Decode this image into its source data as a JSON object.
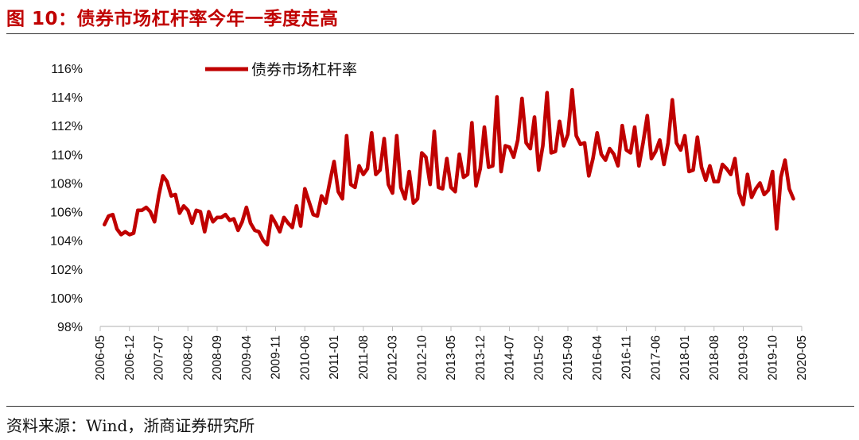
{
  "figure": {
    "title": "图 10：债券市场杠杆率今年一季度走高",
    "source": "资料来源：Wind，浙商证券研究所"
  },
  "colors": {
    "accent": "#c00000",
    "axis": "#bfbfbf",
    "text": "#111111"
  },
  "chart_data": {
    "type": "line",
    "title": "",
    "xlabel": "",
    "ylabel": "",
    "ylim": [
      98,
      116
    ],
    "y_ticks": [
      98,
      100,
      102,
      104,
      106,
      108,
      110,
      112,
      114,
      116
    ],
    "y_tick_labels": [
      "98%",
      "100%",
      "102%",
      "104%",
      "106%",
      "108%",
      "110%",
      "112%",
      "114%",
      "116%"
    ],
    "x_tick_labels": [
      "2006-05",
      "2006-12",
      "2007-07",
      "2008-02",
      "2008-09",
      "2009-04",
      "2009-11",
      "2010-06",
      "2011-01",
      "2011-08",
      "2012-03",
      "2012-10",
      "2013-05",
      "2013-12",
      "2014-07",
      "2015-02",
      "2015-09",
      "2016-04",
      "2016-11",
      "2017-06",
      "2018-01",
      "2018-08",
      "2019-03",
      "2019-10",
      "2020-05"
    ],
    "x_start": "2006-05",
    "x_end": "2020-05",
    "grid": false,
    "legend": {
      "position": "top-left",
      "entries": [
        "债券市场杠杆率"
      ]
    },
    "series": [
      {
        "name": "债券市场杠杆率",
        "color": "#c00000",
        "start": "2006-06",
        "values": [
          105.1,
          105.7,
          105.8,
          104.8,
          104.4,
          104.6,
          104.4,
          104.5,
          106.1,
          106.1,
          106.3,
          106.0,
          105.3,
          107.1,
          108.5,
          108.1,
          107.1,
          107.2,
          105.9,
          106.4,
          106.1,
          105.2,
          106.1,
          106.0,
          104.6,
          106.0,
          105.3,
          105.6,
          105.6,
          105.8,
          105.4,
          105.5,
          104.7,
          105.3,
          106.3,
          105.2,
          104.7,
          104.6,
          104.0,
          103.7,
          105.7,
          105.2,
          104.6,
          105.6,
          105.2,
          104.9,
          106.4,
          105.0,
          107.6,
          106.7,
          105.8,
          105.7,
          107.1,
          106.6,
          108.1,
          109.5,
          107.4,
          106.9,
          111.3,
          107.9,
          107.7,
          109.2,
          108.6,
          109.0,
          111.5,
          108.6,
          108.9,
          111.1,
          107.9,
          107.3,
          111.3,
          107.7,
          106.9,
          108.8,
          106.6,
          106.9,
          110.1,
          109.8,
          107.9,
          111.6,
          107.7,
          107.6,
          109.7,
          107.7,
          107.4,
          110.0,
          108.4,
          108.6,
          112.2,
          107.8,
          109.0,
          111.9,
          109.1,
          109.2,
          114.0,
          108.8,
          110.6,
          110.5,
          109.8,
          111.0,
          113.9,
          110.8,
          110.4,
          112.6,
          108.9,
          110.6,
          114.3,
          110.1,
          110.2,
          112.3,
          110.6,
          111.4,
          114.5,
          111.3,
          110.7,
          110.8,
          108.5,
          109.7,
          111.5,
          110.0,
          109.6,
          110.4,
          110.0,
          109.2,
          112.0,
          110.3,
          110.1,
          111.9,
          109.2,
          110.8,
          112.7,
          109.7,
          110.2,
          111.0,
          109.3,
          110.8,
          113.8,
          110.8,
          110.3,
          111.3,
          108.8,
          108.9,
          111.2,
          109.1,
          108.2,
          109.2,
          108.1,
          108.1,
          109.3,
          109.0,
          108.6,
          109.7,
          107.3,
          106.5,
          108.6,
          107.0,
          107.6,
          108.0,
          107.2,
          107.5,
          108.8,
          104.8,
          108.4,
          109.6,
          107.6,
          106.9
        ]
      }
    ]
  }
}
